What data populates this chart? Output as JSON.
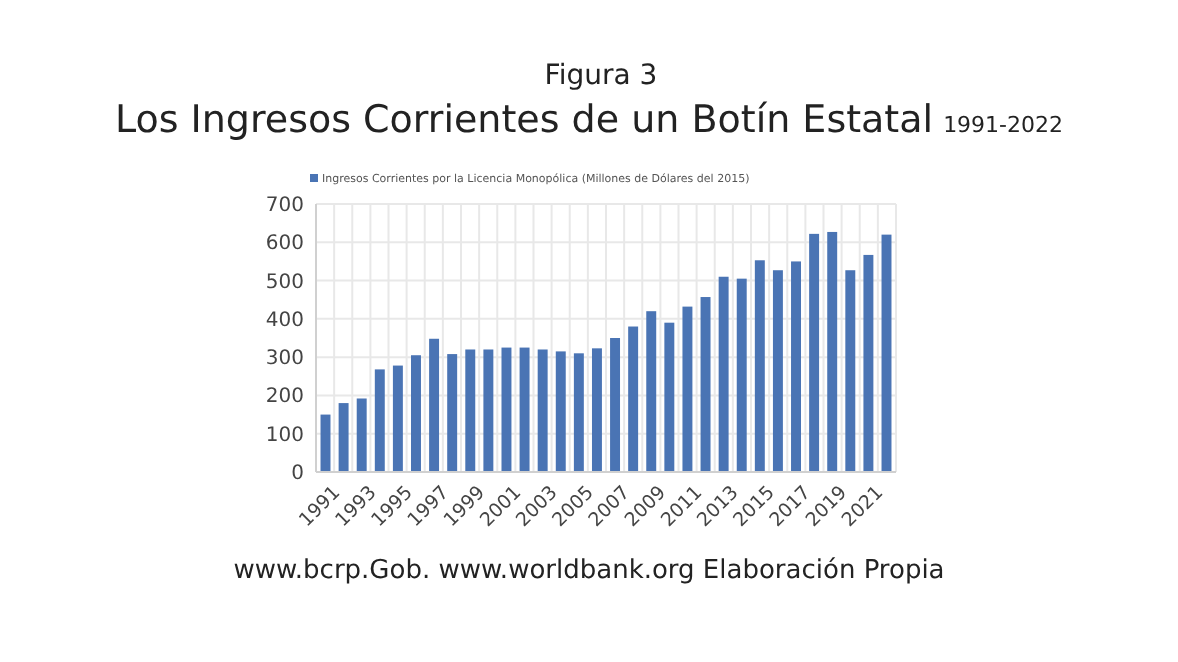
{
  "chart_data": {
    "type": "bar",
    "title": "Los Ingresos Corrientes de un Botín Estatal",
    "subtitle": "1991-2022",
    "annotations": [
      "Figura 3",
      "www.bcrp.Gob. www.worldbank.org Elaboración Propia"
    ],
    "categories": [
      "1991",
      null,
      "1993",
      null,
      "1995",
      null,
      "1997",
      null,
      "1999",
      null,
      "2001",
      null,
      "2003",
      null,
      "2005",
      null,
      "2007",
      null,
      "2009",
      null,
      "2011",
      null,
      "2013",
      null,
      "2015",
      null,
      "2017",
      null,
      "2019",
      null,
      "2021",
      null
    ],
    "series": [
      {
        "name": "Ingresos Corrientes por la Licencia Monopólica (Millones de Dólares del 2015)",
        "color": "#4a74b4",
        "values": [
          150,
          180,
          192,
          268,
          278,
          305,
          348,
          308,
          320,
          320,
          325,
          325,
          320,
          315,
          310,
          323,
          350,
          380,
          420,
          390,
          432,
          457,
          510,
          505,
          553,
          527,
          550,
          622,
          627,
          527,
          567,
          620
        ]
      }
    ],
    "ylim": [
      0,
      700
    ],
    "yticks": [
      0,
      100,
      200,
      300,
      400,
      500,
      600,
      700
    ],
    "grid": true,
    "legend": "top"
  }
}
